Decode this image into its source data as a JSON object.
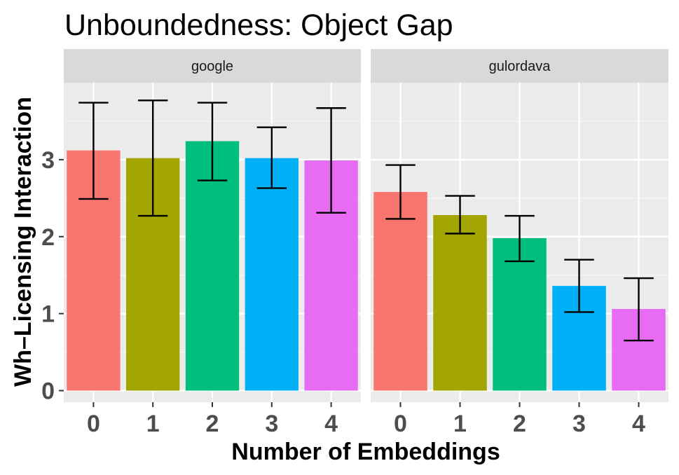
{
  "chart_data": {
    "type": "bar",
    "title": "Unboundedness: Object Gap",
    "xlabel": "Number of Embeddings",
    "ylabel": "Wh–Licensing Interaction",
    "categories": [
      "0",
      "1",
      "2",
      "3",
      "4"
    ],
    "y_ticks": [
      "0",
      "1",
      "2",
      "3"
    ],
    "ylim": [
      -0.15,
      4.0
    ],
    "colors": [
      "#F8766D",
      "#A3A500",
      "#00BF7D",
      "#00B0F6",
      "#E76BF3"
    ],
    "panels": [
      {
        "name": "google",
        "values": [
          3.12,
          3.02,
          3.24,
          3.02,
          2.99
        ],
        "err_low": [
          2.49,
          2.27,
          2.73,
          2.63,
          2.31
        ],
        "err_high": [
          3.74,
          3.77,
          3.74,
          3.42,
          3.67
        ]
      },
      {
        "name": "gulordava",
        "values": [
          2.58,
          2.28,
          1.98,
          1.36,
          1.06
        ],
        "err_low": [
          2.23,
          2.04,
          1.68,
          1.02,
          0.65
        ],
        "err_high": [
          2.93,
          2.53,
          2.27,
          1.7,
          1.46
        ]
      }
    ]
  }
}
